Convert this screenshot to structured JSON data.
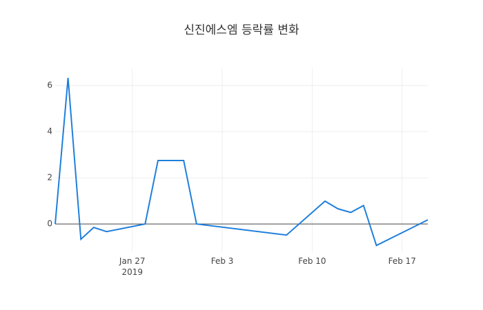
{
  "chart_data": {
    "type": "line",
    "title": "신진에스엠 등락률 변화",
    "x": [
      "2019-01-21",
      "2019-01-22",
      "2019-01-23",
      "2019-01-24",
      "2019-01-25",
      "2019-01-28",
      "2019-01-29",
      "2019-01-30",
      "2019-01-31",
      "2019-02-01",
      "2019-02-08",
      "2019-02-11",
      "2019-02-12",
      "2019-02-13",
      "2019-02-14",
      "2019-02-15",
      "2019-02-18",
      "2019-02-19"
    ],
    "series": [
      {
        "color": "#1f7fdb",
        "values": [
          0,
          6.33,
          -0.66,
          -0.15,
          -0.33,
          0,
          2.75,
          2.75,
          2.75,
          0,
          -0.48,
          0.99,
          0.66,
          0.5,
          0.8,
          -0.93,
          -0.1,
          0.18
        ]
      }
    ],
    "xlim": [
      "2019-01-21",
      "2019-02-19"
    ],
    "xticks": [
      {
        "value": "2019-01-27",
        "label": "Jan 27\n2019"
      },
      {
        "value": "2019-02-03",
        "label": "Feb 3"
      },
      {
        "value": "2019-02-10",
        "label": "Feb 10"
      },
      {
        "value": "2019-02-17",
        "label": "Feb 17"
      }
    ],
    "ylim": [
      -1.19,
      6.72
    ],
    "yticks": [
      0,
      2,
      4,
      6
    ],
    "grid": true
  }
}
